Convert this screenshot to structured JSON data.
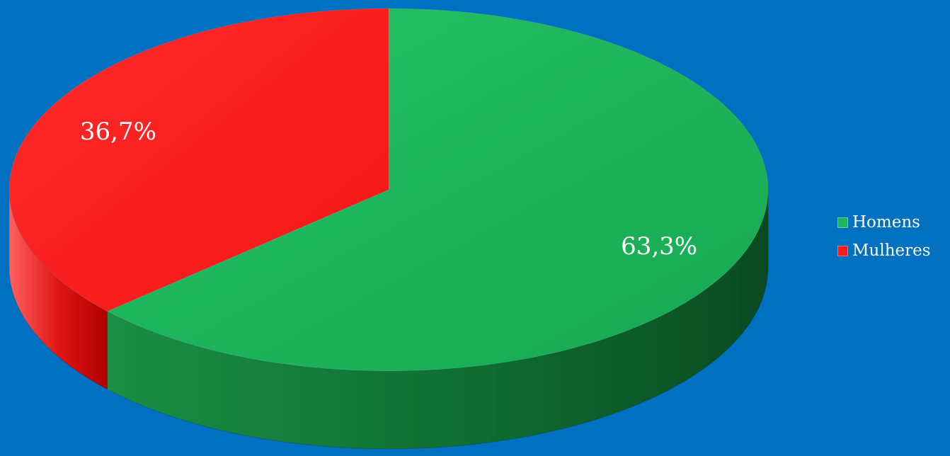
{
  "chart_data": {
    "type": "pie",
    "title": "",
    "labels": [
      "Homens",
      "Mulheres"
    ],
    "values": [
      63.3,
      36.7
    ],
    "data_labels": [
      "63,3%",
      "36,7%"
    ],
    "colors": [
      "#1DB65C",
      "#FF1C1C"
    ],
    "legend_placement": "right",
    "style": "3d"
  },
  "background_color": "#0070C0"
}
